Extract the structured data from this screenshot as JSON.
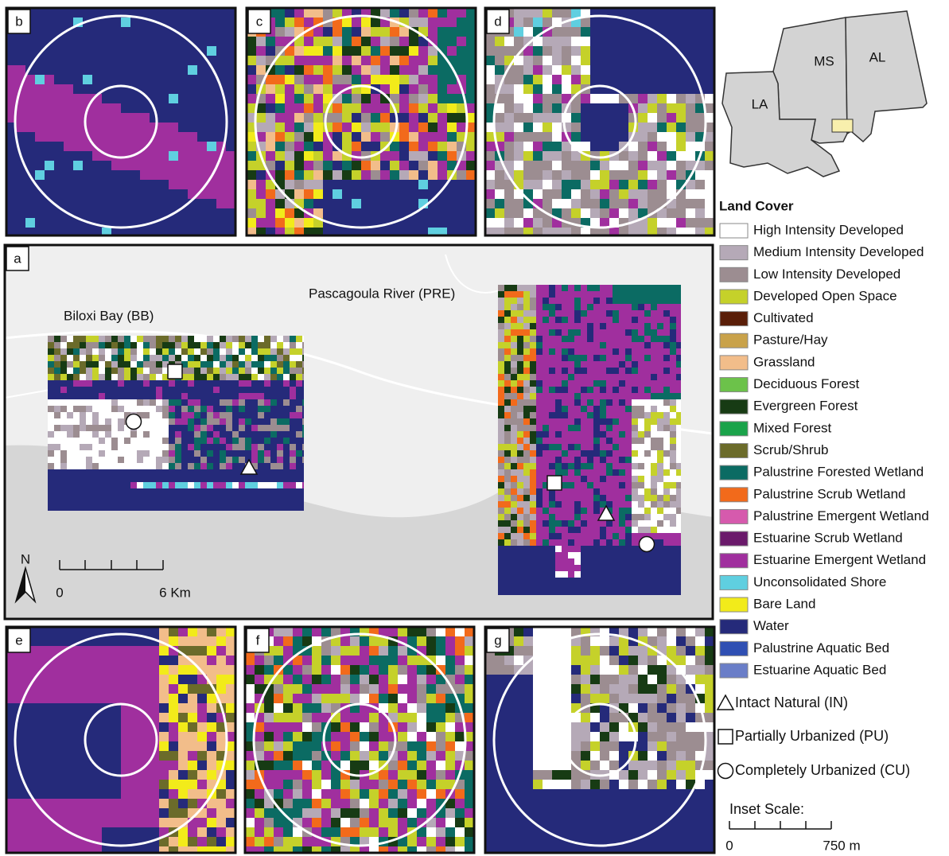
{
  "panel_labels": [
    "b",
    "c",
    "d",
    "a",
    "e",
    "f",
    "g"
  ],
  "locator_map": {
    "states": [
      "LA",
      "MS",
      "AL"
    ]
  },
  "main_map": {
    "sites": [
      "Biloxi Bay (BB)",
      "Pascagoula River (PRE)"
    ],
    "north": "N",
    "scale": {
      "start": "0",
      "end": "6 Km"
    }
  },
  "legend": {
    "title": "Land Cover",
    "items": [
      {
        "label": "High Intensity Developed",
        "color": "#ffffff"
      },
      {
        "label": "Medium Intensity Developed",
        "color": "#b5a9b7"
      },
      {
        "label": "Low Intensity Developed",
        "color": "#9c8d91"
      },
      {
        "label": "Developed Open Space",
        "color": "#c5d12a"
      },
      {
        "label": "Cultivated",
        "color": "#5a1e08"
      },
      {
        "label": "Pasture/Hay",
        "color": "#c9a24a"
      },
      {
        "label": "Grassland",
        "color": "#f2bd8a"
      },
      {
        "label": "Deciduous Forest",
        "color": "#6cc24a"
      },
      {
        "label": "Evergreen Forest",
        "color": "#173b14"
      },
      {
        "label": "Mixed Forest",
        "color": "#1aa34a"
      },
      {
        "label": "Scrub/Shrub",
        "color": "#6b6b2a"
      },
      {
        "label": "Palustrine Forested Wetland",
        "color": "#0b6b63"
      },
      {
        "label": "Palustrine Scrub Wetland",
        "color": "#f26a1b"
      },
      {
        "label": "Palustrine Emergent Wetland",
        "color": "#d65aad"
      },
      {
        "label": "Estuarine Scrub Wetland",
        "color": "#6b1a6b"
      },
      {
        "label": "Estuarine Emergent Wetland",
        "color": "#a02f9e"
      },
      {
        "label": "Unconsolidated Shore",
        "color": "#5fcfe0"
      },
      {
        "label": "Bare Land",
        "color": "#f2eb1a"
      },
      {
        "label": "Water",
        "color": "#252a7a"
      },
      {
        "label": "Palustrine Aquatic Bed",
        "color": "#2f4fb3"
      },
      {
        "label": "Estuarine Aquatic Bed",
        "color": "#6a7ec8"
      }
    ],
    "symbols": [
      "Intact Natural (IN)",
      "Partially Urbanized (PU)",
      "Completely Urbanized (CU)"
    ],
    "inset_scale": {
      "title": "Inset Scale:",
      "start": "0",
      "end": "750 m"
    }
  }
}
